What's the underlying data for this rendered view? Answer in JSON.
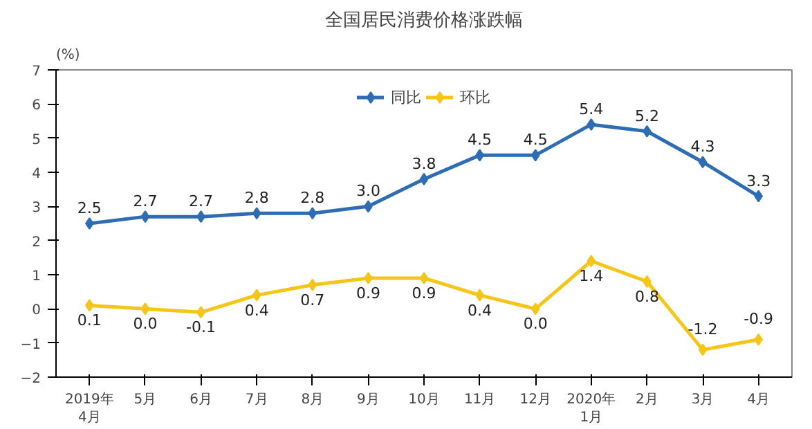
{
  "chart_data": {
    "type": "line",
    "title": "全国居民消费价格涨跌幅",
    "ylabel": "(%)",
    "categories": [
      "2019年\n4月",
      "5月",
      "6月",
      "7月",
      "8月",
      "9月",
      "10月",
      "11月",
      "12月",
      "2020年\n1月",
      "2月",
      "3月",
      "4月"
    ],
    "series": [
      {
        "name": "同比",
        "color": "#2e6db4",
        "values": [
          2.5,
          2.7,
          2.7,
          2.8,
          2.8,
          3.0,
          3.8,
          4.5,
          4.5,
          5.4,
          5.2,
          4.3,
          3.3
        ],
        "value_labels": [
          "2.5",
          "2.7",
          "2.7",
          "2.8",
          "2.8",
          "3.0",
          "3.8",
          "4.5",
          "4.5",
          "5.4",
          "5.2",
          "4.3",
          "3.3"
        ]
      },
      {
        "name": "环比",
        "color": "#f5c518",
        "values": [
          0.1,
          0.0,
          -0.1,
          0.4,
          0.7,
          0.9,
          0.9,
          0.4,
          0.0,
          1.4,
          0.8,
          -1.2,
          -0.9
        ],
        "value_labels": [
          "0.1",
          "0.0",
          "-0.1",
          "0.4",
          "0.7",
          "0.9",
          "0.9",
          "0.4",
          "0.0",
          "1.4",
          "0.8",
          "-1.2",
          "-0.9"
        ]
      }
    ],
    "ylim": [
      -2,
      7
    ],
    "yticks": [
      -2,
      -1,
      0,
      1,
      2,
      3,
      4,
      5,
      6,
      7
    ],
    "grid": false,
    "legend": "top",
    "marker": "diamond",
    "line_style": "solid"
  }
}
